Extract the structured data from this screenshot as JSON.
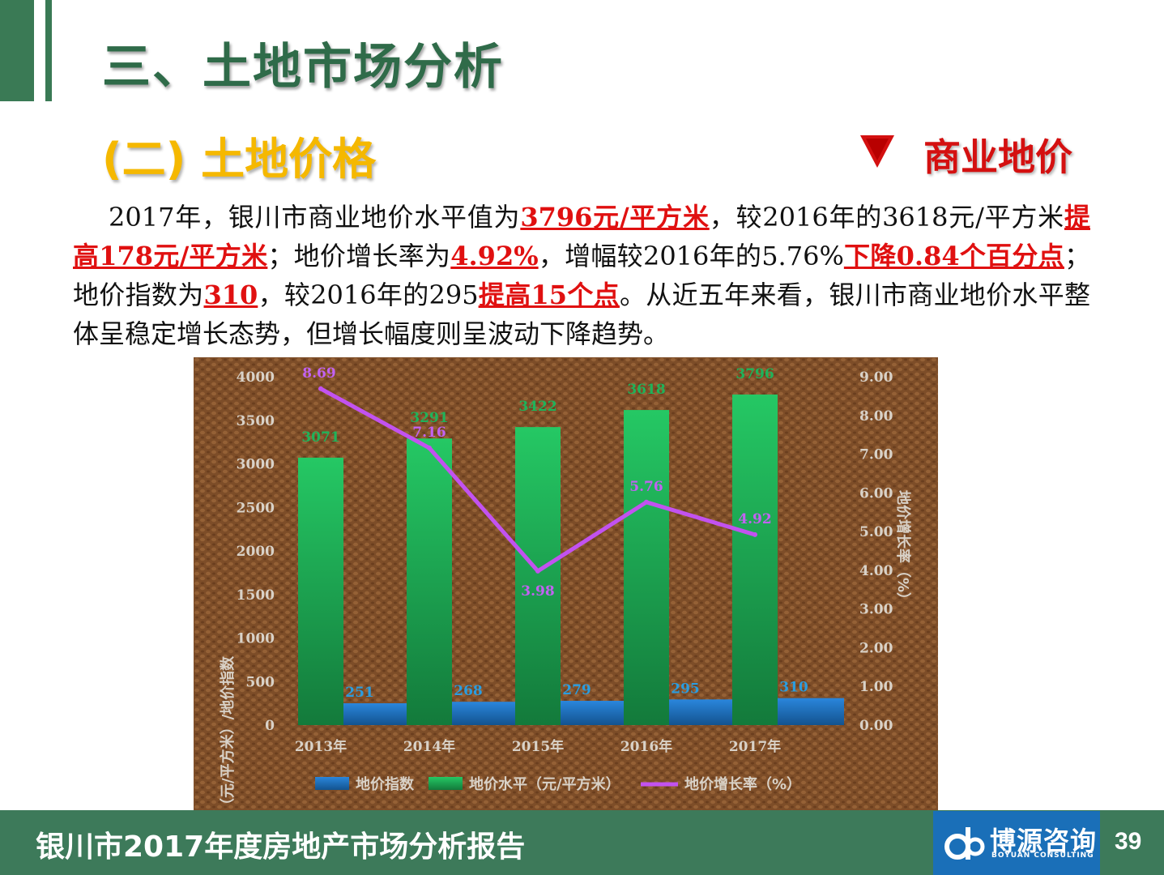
{
  "header": {
    "title": "三、土地市场分析",
    "subtitle": "(二) 土地价格",
    "section_label": "商业地价",
    "section_icon": "down-triangle-icon"
  },
  "paragraph": {
    "s1": "2017年，银川市商业地价水平值为",
    "h1": "3796元/平方米",
    "s2": "，较2016年的3618元/平方米",
    "h2": "提高178元/平方米",
    "s3": "；地价增长率为",
    "h3": "4.92%",
    "s4": "，增幅较2016年的5.76%",
    "h4": "下降0.84个百分点",
    "s5": "；地价指数为",
    "h5": "310",
    "s6": "，较2016年的295",
    "h6": "提高15个点",
    "s7": "。从近五年来看，银川市商业地价水平整体呈稳定增长态势，但增长幅度则呈波动下降趋势。"
  },
  "chart_data": {
    "type": "bar",
    "categories": [
      "2013年",
      "2014年",
      "2015年",
      "2016年",
      "2017年"
    ],
    "series": [
      {
        "name": "地价指数",
        "type": "bar",
        "axis": "left",
        "values": [
          251,
          268,
          279,
          295,
          310
        ],
        "color": "#1f72c4"
      },
      {
        "name": "地价水平（元/平方米）",
        "type": "bar",
        "axis": "left",
        "values": [
          3071,
          3291,
          3422,
          3618,
          3796
        ],
        "color": "#22b457"
      },
      {
        "name": "地价增长率（%）",
        "type": "line",
        "axis": "right",
        "values": [
          8.69,
          7.16,
          3.98,
          5.76,
          4.92
        ],
        "color": "#c252f0"
      }
    ],
    "labels": {
      "index": [
        "251",
        "268",
        "279",
        "295",
        "310"
      ],
      "price": [
        "3071",
        "3291",
        "3422",
        "3618",
        "3796"
      ],
      "rate": [
        "8.69",
        "7.16",
        "3.98",
        "5.76",
        "4.92"
      ]
    },
    "left_ticks": [
      "0",
      "500",
      "1000",
      "1500",
      "2000",
      "2500",
      "3000",
      "3500",
      "4000"
    ],
    "right_ticks": [
      "0.00",
      "1.00",
      "2.00",
      "3.00",
      "4.00",
      "5.00",
      "6.00",
      "7.00",
      "8.00",
      "9.00"
    ],
    "ylabel": "地价水平（元/平方米）/地价指数",
    "y2label": "地价增长率（%）",
    "ylim": [
      0,
      4000
    ],
    "y2lim": [
      0,
      9
    ],
    "legend_position": "bottom",
    "grid": false,
    "background_color": "#7a4a26"
  },
  "footer": {
    "report_title": "银川市2017年度房地产市场分析报告",
    "logo_cn": "博源咨询",
    "logo_en": "BOYUAN CONSULTING",
    "page_number": "39"
  }
}
